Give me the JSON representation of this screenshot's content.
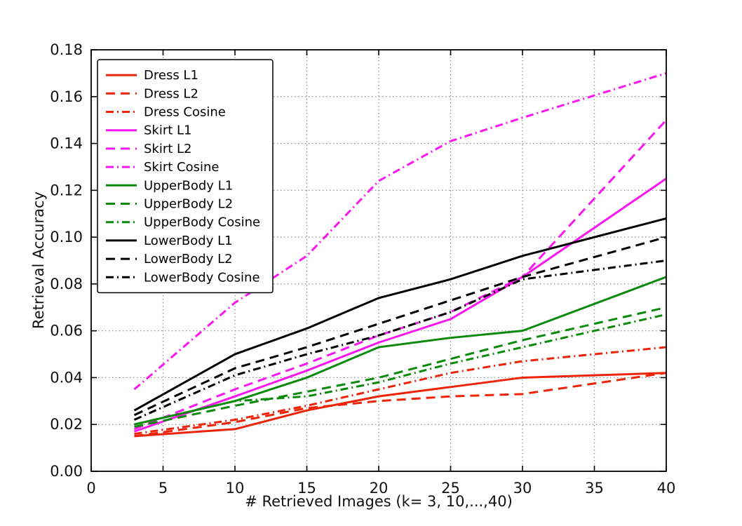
{
  "figure": {
    "xlabel": "# Retrieved Images (k= 3, 10,...,40)",
    "ylabel": "Retrieval Accuracy"
  },
  "chart_data": {
    "type": "line",
    "title": "",
    "xlabel": "# Retrieved Images (k= 3, 10,...,40)",
    "ylabel": "Retrieval Accuracy",
    "xlim": [
      0,
      40
    ],
    "ylim": [
      0,
      0.18
    ],
    "xticks": [
      0,
      5,
      10,
      15,
      20,
      25,
      30,
      35,
      40
    ],
    "xtick_labels": [
      "0",
      "5",
      "10",
      "15",
      "20",
      "25",
      "30",
      "35",
      "40"
    ],
    "yticks": [
      0,
      0.02,
      0.04,
      0.06,
      0.08,
      0.1,
      0.12,
      0.14,
      0.16,
      0.18
    ],
    "ytick_labels": [
      "0.00",
      "0.02",
      "0.04",
      "0.06",
      "0.08",
      "0.10",
      "0.12",
      "0.14",
      "0.16",
      "0.18"
    ],
    "grid": true,
    "legend_position": "upper left",
    "x": [
      3,
      10,
      15,
      20,
      25,
      30,
      40
    ],
    "series": [
      {
        "name": "Dress L1",
        "color": "#ed2409",
        "style": "solid",
        "values": [
          0.015,
          0.018,
          0.026,
          0.032,
          0.036,
          0.04,
          0.042
        ]
      },
      {
        "name": "Dress L2",
        "color": "#ed2409",
        "style": "dashed",
        "values": [
          0.015,
          0.021,
          0.027,
          0.03,
          0.032,
          0.033,
          0.042
        ]
      },
      {
        "name": "Dress Cosine",
        "color": "#ed2409",
        "style": "dashdot",
        "values": [
          0.016,
          0.022,
          0.028,
          0.035,
          0.042,
          0.047,
          0.053
        ]
      },
      {
        "name": "Skirt L1",
        "color": "#fb16f1",
        "style": "solid",
        "values": [
          0.017,
          0.032,
          0.043,
          0.055,
          0.065,
          0.083,
          0.125
        ]
      },
      {
        "name": "Skirt L2",
        "color": "#fb16f1",
        "style": "dashed",
        "values": [
          0.018,
          0.035,
          0.046,
          0.058,
          0.068,
          0.083,
          0.15
        ]
      },
      {
        "name": "Skirt Cosine",
        "color": "#fb16f1",
        "style": "dashdot",
        "values": [
          0.035,
          0.072,
          0.092,
          0.124,
          0.141,
          0.151,
          0.17
        ]
      },
      {
        "name": "UpperBody L1",
        "color": "#0a8a0a",
        "style": "solid",
        "values": [
          0.02,
          0.03,
          0.04,
          0.053,
          0.057,
          0.06,
          0.083
        ]
      },
      {
        "name": "UpperBody L2",
        "color": "#0a8a0a",
        "style": "dashed",
        "values": [
          0.019,
          0.028,
          0.034,
          0.04,
          0.048,
          0.056,
          0.07
        ]
      },
      {
        "name": "UpperBody Cosine",
        "color": "#0a8a0a",
        "style": "dashdot",
        "values": [
          0.02,
          0.03,
          0.032,
          0.038,
          0.046,
          0.053,
          0.067
        ]
      },
      {
        "name": "LowerBody L1",
        "color": "#000000",
        "style": "solid",
        "values": [
          0.026,
          0.05,
          0.061,
          0.074,
          0.082,
          0.092,
          0.108
        ]
      },
      {
        "name": "LowerBody L2",
        "color": "#000000",
        "style": "dashed",
        "values": [
          0.024,
          0.044,
          0.053,
          0.063,
          0.073,
          0.083,
          0.1
        ]
      },
      {
        "name": "LowerBody Cosine",
        "color": "#000000",
        "style": "dashdot",
        "values": [
          0.022,
          0.041,
          0.05,
          0.058,
          0.068,
          0.082,
          0.09
        ]
      }
    ]
  }
}
